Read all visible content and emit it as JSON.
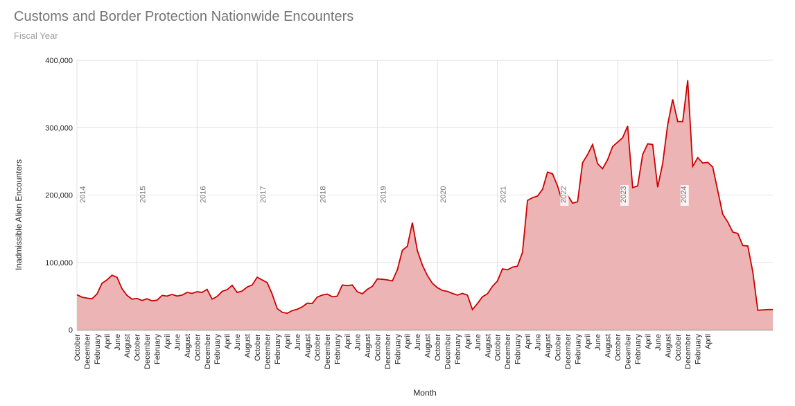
{
  "page": {
    "title": "Customs and Border Protection Nationwide Encounters",
    "subtitle": "Fiscal Year"
  },
  "colors": {
    "line": "#cc0000",
    "fill": "#ebb0b0",
    "grid": "#e0e0e0",
    "title": "#757575",
    "axis_text": "#222222",
    "year_label": "#757575"
  },
  "chart_data": {
    "type": "area",
    "title": "Customs and Border Protection Nationwide Encounters",
    "subtitle": "Fiscal Year",
    "xlabel": "Month",
    "ylabel": "Inadmissible Alien Encounters",
    "ylim": [
      0,
      400000
    ],
    "yticks": [
      0,
      100000,
      200000,
      300000,
      400000
    ],
    "ytick_labels": [
      "0",
      "100,000",
      "200,000",
      "300,000",
      "400,000"
    ],
    "grid": true,
    "legend": "none",
    "x_start": "2013-10",
    "x_end": "2024-05",
    "x_tick_labels": [
      "October",
      "December",
      "February",
      "April",
      "June",
      "August",
      "October",
      "December",
      "February",
      "April",
      "June",
      "August",
      "October",
      "December",
      "February",
      "April",
      "June",
      "August",
      "October",
      "December",
      "February",
      "April",
      "June",
      "August",
      "October",
      "December",
      "February",
      "April",
      "June",
      "August",
      "October",
      "December",
      "February",
      "April",
      "June",
      "August",
      "October",
      "December",
      "February",
      "April",
      "June",
      "August",
      "October",
      "December",
      "February",
      "April",
      "June",
      "August",
      "October",
      "December",
      "February",
      "April",
      "June",
      "August",
      "October",
      "December",
      "February",
      "April",
      "June",
      "August",
      "October",
      "December",
      "February",
      "April"
    ],
    "fiscal_year_markers": [
      {
        "label": "2014",
        "x": "2013-10"
      },
      {
        "label": "2015",
        "x": "2014-10"
      },
      {
        "label": "2016",
        "x": "2015-10"
      },
      {
        "label": "2017",
        "x": "2016-10"
      },
      {
        "label": "2018",
        "x": "2017-10"
      },
      {
        "label": "2019",
        "x": "2018-10"
      },
      {
        "label": "2020",
        "x": "2019-10"
      },
      {
        "label": "2021",
        "x": "2020-10"
      },
      {
        "label": "2022",
        "x": "2021-10"
      },
      {
        "label": "2023",
        "x": "2022-10"
      },
      {
        "label": "2024",
        "x": "2023-10"
      }
    ],
    "series": [
      {
        "x": [
          "2013-10",
          "2013-11",
          "2013-12",
          "2014-01",
          "2014-02",
          "2014-03",
          "2014-04",
          "2014-05",
          "2014-06",
          "2014-07",
          "2014-08",
          "2014-09",
          "2014-10",
          "2014-11",
          "2014-12",
          "2015-01",
          "2015-02",
          "2015-03",
          "2015-04",
          "2015-05",
          "2015-06",
          "2015-07",
          "2015-08",
          "2015-09",
          "2015-10",
          "2015-11",
          "2015-12",
          "2016-01",
          "2016-02",
          "2016-03",
          "2016-04",
          "2016-05",
          "2016-06",
          "2016-07",
          "2016-08",
          "2016-09",
          "2016-10",
          "2016-11",
          "2016-12",
          "2017-01",
          "2017-02",
          "2017-03",
          "2017-04",
          "2017-05",
          "2017-06",
          "2017-07",
          "2017-08",
          "2017-09",
          "2017-10",
          "2017-11",
          "2017-12",
          "2018-01",
          "2018-02",
          "2018-03",
          "2018-04",
          "2018-05",
          "2018-06",
          "2018-07",
          "2018-08",
          "2018-09",
          "2018-10",
          "2018-11",
          "2018-12",
          "2019-01",
          "2019-02",
          "2019-03",
          "2019-04",
          "2019-05",
          "2019-06",
          "2019-07",
          "2019-08",
          "2019-09",
          "2019-10",
          "2019-11",
          "2019-12",
          "2020-01",
          "2020-02",
          "2020-03",
          "2020-04",
          "2020-05",
          "2020-06",
          "2020-07",
          "2020-08",
          "2020-09",
          "2020-10",
          "2020-11",
          "2020-12",
          "2021-01",
          "2021-02",
          "2021-03",
          "2021-04",
          "2021-05",
          "2021-06",
          "2021-07",
          "2021-08",
          "2021-09",
          "2021-10",
          "2021-11",
          "2021-12",
          "2022-01",
          "2022-02",
          "2022-03",
          "2022-04",
          "2022-05",
          "2022-06",
          "2022-07",
          "2022-08",
          "2022-09",
          "2022-10",
          "2022-11",
          "2022-12",
          "2023-01",
          "2023-02",
          "2023-03",
          "2023-04",
          "2023-05",
          "2023-06",
          "2023-07",
          "2023-08",
          "2023-09",
          "2023-10",
          "2023-11",
          "2023-12",
          "2024-01",
          "2024-02",
          "2024-03",
          "2024-04",
          "2024-05"
        ],
        "values": [
          52000,
          48500,
          47000,
          46000,
          53000,
          69000,
          74000,
          81000,
          78000,
          61000,
          51000,
          45500,
          46500,
          43500,
          46000,
          43000,
          44000,
          51000,
          50000,
          52500,
          50000,
          51500,
          55500,
          54000,
          56500,
          55500,
          60000,
          45500,
          49500,
          57000,
          59500,
          66000,
          55500,
          57500,
          63500,
          66500,
          78000,
          74000,
          70000,
          53000,
          31500,
          26000,
          24500,
          28500,
          30500,
          34000,
          39500,
          39000,
          48500,
          51500,
          53000,
          49000,
          50000,
          66500,
          65500,
          66500,
          56500,
          53500,
          60000,
          64500,
          75500,
          75000,
          74000,
          72500,
          89000,
          118000,
          124000,
          159000,
          117500,
          96000,
          80500,
          69000,
          62500,
          58500,
          57000,
          54000,
          51500,
          54000,
          51500,
          30000,
          39000,
          49000,
          53500,
          64500,
          72500,
          90500,
          89000,
          93000,
          94500,
          115000,
          192000,
          196000,
          198500,
          208500,
          234000,
          231500,
          213500,
          189000,
          200000,
          188000,
          190000,
          248000,
          260000,
          275000,
          246500,
          239000,
          252500,
          272000,
          278500,
          285000,
          302500,
          211000,
          213500,
          260000,
          276000,
          275000,
          211500,
          247000,
          304500,
          342000,
          309000,
          309000,
          370500,
          242500,
          255500,
          247500,
          248500,
          241500
        ],
        "tail_values": [
          206500,
          171500,
          160000,
          145000,
          143000,
          125000,
          124500,
          86000,
          29000,
          29500,
          30000,
          30000
        ]
      }
    ]
  }
}
